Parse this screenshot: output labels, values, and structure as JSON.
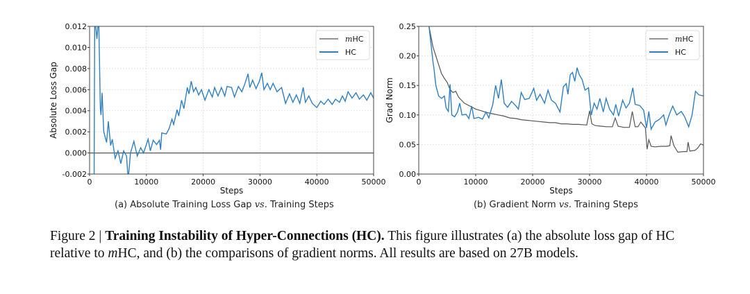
{
  "chart_data": [
    {
      "type": "line",
      "subcaption_prefix": "(a) Absolute Training Loss Gap",
      "subcaption_vs": "vs.",
      "subcaption_suffix": "Training Steps",
      "xlabel": "Steps",
      "ylabel": "Absolute Loss Gap",
      "xlim": [
        0,
        50000
      ],
      "ylim": [
        -0.002,
        0.012
      ],
      "xticks": [
        "0",
        "10000",
        "20000",
        "30000",
        "40000",
        "50000"
      ],
      "yticks": [
        "-0.002",
        "0.000",
        "0.002",
        "0.004",
        "0.006",
        "0.008",
        "0.010",
        "0.012"
      ],
      "grid": true,
      "legend_placement": "top-right",
      "series": [
        {
          "name": "mHC",
          "color": "#555555",
          "points": [
            [
              0,
              0
            ],
            [
              50000,
              0
            ]
          ]
        },
        {
          "name": "HC",
          "color": "#2f7fc1",
          "points": [
            [
              200,
              -0.003
            ],
            [
              800,
              -0.003
            ],
            [
              900,
              0.013
            ],
            [
              1300,
              0.0108
            ],
            [
              1600,
              0.013
            ],
            [
              1900,
              0.0042
            ],
            [
              2000,
              0.0036
            ],
            [
              2200,
              0.0057
            ],
            [
              2500,
              0.002
            ],
            [
              3000,
              0.001
            ],
            [
              3300,
              0.003
            ],
            [
              3700,
              0.0007
            ],
            [
              4000,
              0.0013
            ],
            [
              4500,
              -0.0005
            ],
            [
              5000,
              0.0002
            ],
            [
              5500,
              -0.001
            ],
            [
              6000,
              0.0002
            ],
            [
              6500,
              -0.0003
            ],
            [
              6800,
              -0.0025
            ],
            [
              7200,
              0.0
            ],
            [
              7800,
              0.0011
            ],
            [
              8400,
              -0.0003
            ],
            [
              9000,
              0.0005
            ],
            [
              9500,
              0.0
            ],
            [
              10000,
              0.0008
            ],
            [
              10300,
              0.0013
            ],
            [
              10700,
              0.0002
            ],
            [
              11200,
              0.0012
            ],
            [
              11800,
              0.0008
            ],
            [
              12300,
              0.0012
            ],
            [
              12500,
              0.0003
            ],
            [
              12700,
              0.0019
            ],
            [
              13500,
              0.0018
            ],
            [
              14000,
              0.0023
            ],
            [
              14500,
              0.0032
            ],
            [
              14800,
              0.0027
            ],
            [
              15400,
              0.0041
            ],
            [
              15700,
              0.0035
            ],
            [
              16200,
              0.005
            ],
            [
              16600,
              0.0042
            ],
            [
              17200,
              0.0062
            ],
            [
              17500,
              0.0056
            ],
            [
              17900,
              0.0068
            ],
            [
              18300,
              0.0058
            ],
            [
              18700,
              0.0062
            ],
            [
              19200,
              0.0055
            ],
            [
              19700,
              0.006
            ],
            [
              20300,
              0.005
            ],
            [
              21000,
              0.006
            ],
            [
              21600,
              0.0053
            ],
            [
              22000,
              0.0062
            ],
            [
              22600,
              0.0054
            ],
            [
              23200,
              0.0062
            ],
            [
              23800,
              0.0054
            ],
            [
              24200,
              0.0063
            ],
            [
              25000,
              0.0062
            ],
            [
              25500,
              0.0053
            ],
            [
              26200,
              0.0063
            ],
            [
              26800,
              0.0058
            ],
            [
              27300,
              0.0065
            ],
            [
              27900,
              0.0075
            ],
            [
              28200,
              0.0062
            ],
            [
              28700,
              0.0069
            ],
            [
              29300,
              0.0061
            ],
            [
              29900,
              0.0068
            ],
            [
              30300,
              0.0076
            ],
            [
              30700,
              0.006
            ],
            [
              31300,
              0.0066
            ],
            [
              31800,
              0.006
            ],
            [
              32300,
              0.0066
            ],
            [
              33000,
              0.0058
            ],
            [
              33800,
              0.0062
            ],
            [
              34500,
              0.0047
            ],
            [
              35200,
              0.0056
            ],
            [
              35800,
              0.0048
            ],
            [
              36400,
              0.0055
            ],
            [
              37000,
              0.0047
            ],
            [
              37600,
              0.0062
            ],
            [
              38000,
              0.0048
            ],
            [
              38600,
              0.0054
            ],
            [
              39200,
              0.0047
            ],
            [
              40000,
              0.0043
            ],
            [
              40700,
              0.0049
            ],
            [
              41300,
              0.0046
            ],
            [
              42000,
              0.0051
            ],
            [
              42700,
              0.0046
            ],
            [
              43300,
              0.0051
            ],
            [
              44000,
              0.0048
            ],
            [
              44500,
              0.0054
            ],
            [
              45000,
              0.0049
            ],
            [
              45500,
              0.0058
            ],
            [
              46200,
              0.0052
            ],
            [
              46900,
              0.0057
            ],
            [
              47500,
              0.0051
            ],
            [
              48200,
              0.0055
            ],
            [
              48800,
              0.005
            ],
            [
              49500,
              0.0057
            ],
            [
              50000,
              0.0052
            ]
          ]
        }
      ]
    },
    {
      "type": "line",
      "subcaption_prefix": "(b) Gradient Norm",
      "subcaption_vs": "vs.",
      "subcaption_suffix": "Training Steps",
      "xlabel": "Steps",
      "ylabel": "Grad Norm",
      "xlim": [
        0,
        50000
      ],
      "ylim": [
        0,
        0.25
      ],
      "xticks": [
        "0",
        "10000",
        "20000",
        "30000",
        "40000",
        "50000"
      ],
      "yticks": [
        "0.00",
        "0.05",
        "0.10",
        "0.15",
        "0.20",
        "0.25"
      ],
      "grid": true,
      "legend_placement": "top-right",
      "series": [
        {
          "name": "mHC",
          "color": "#555555",
          "points": [
            [
              1800,
              0.25
            ],
            [
              2500,
              0.215
            ],
            [
              3000,
              0.2
            ],
            [
              3500,
              0.185
            ],
            [
              4000,
              0.17
            ],
            [
              4500,
              0.162
            ],
            [
              5000,
              0.155
            ],
            [
              5500,
              0.143
            ],
            [
              6000,
              0.138
            ],
            [
              6500,
              0.14
            ],
            [
              7000,
              0.13
            ],
            [
              7500,
              0.125
            ],
            [
              8000,
              0.12
            ],
            [
              9000,
              0.115
            ],
            [
              10000,
              0.11
            ],
            [
              11000,
              0.107
            ],
            [
              12000,
              0.104
            ],
            [
              13000,
              0.102
            ],
            [
              14000,
              0.1
            ],
            [
              15000,
              0.098
            ],
            [
              16000,
              0.095
            ],
            [
              17000,
              0.094
            ],
            [
              18000,
              0.092
            ],
            [
              19000,
              0.091
            ],
            [
              20000,
              0.09
            ],
            [
              21000,
              0.089
            ],
            [
              22000,
              0.088
            ],
            [
              23000,
              0.087
            ],
            [
              24000,
              0.087
            ],
            [
              25000,
              0.085
            ],
            [
              26000,
              0.085
            ],
            [
              27000,
              0.084
            ],
            [
              28000,
              0.084
            ],
            [
              29500,
              0.083
            ],
            [
              30000,
              0.107
            ],
            [
              30400,
              0.085
            ],
            [
              31000,
              0.082
            ],
            [
              32000,
              0.081
            ],
            [
              33000,
              0.08
            ],
            [
              34000,
              0.08
            ],
            [
              34500,
              0.095
            ],
            [
              35000,
              0.081
            ],
            [
              36000,
              0.079
            ],
            [
              37000,
              0.079
            ],
            [
              37500,
              0.106
            ],
            [
              38000,
              0.08
            ],
            [
              38500,
              0.08
            ],
            [
              39000,
              0.088
            ],
            [
              39800,
              0.078
            ],
            [
              40100,
              0.042
            ],
            [
              40400,
              0.058
            ],
            [
              40800,
              0.047
            ],
            [
              41500,
              0.046
            ],
            [
              42500,
              0.047
            ],
            [
              43500,
              0.047
            ],
            [
              44100,
              0.048
            ],
            [
              44300,
              0.065
            ],
            [
              44800,
              0.048
            ],
            [
              45500,
              0.037
            ],
            [
              46500,
              0.038
            ],
            [
              47100,
              0.038
            ],
            [
              47300,
              0.054
            ],
            [
              47600,
              0.039
            ],
            [
              48500,
              0.04
            ],
            [
              49000,
              0.044
            ],
            [
              49500,
              0.051
            ],
            [
              50000,
              0.049
            ]
          ]
        },
        {
          "name": "HC",
          "color": "#2f7fc1",
          "points": [
            [
              1800,
              0.25
            ],
            [
              2500,
              0.19
            ],
            [
              2700,
              0.177
            ],
            [
              3000,
              0.15
            ],
            [
              3500,
              0.132
            ],
            [
              4000,
              0.128
            ],
            [
              4500,
              0.132
            ],
            [
              4800,
              0.112
            ],
            [
              5200,
              0.106
            ],
            [
              5500,
              0.152
            ],
            [
              5800,
              0.1
            ],
            [
              6300,
              0.097
            ],
            [
              6800,
              0.105
            ],
            [
              7200,
              0.12
            ],
            [
              7600,
              0.1
            ],
            [
              8300,
              0.101
            ],
            [
              8800,
              0.094
            ],
            [
              9300,
              0.115
            ],
            [
              9700,
              0.094
            ],
            [
              10500,
              0.096
            ],
            [
              11200,
              0.093
            ],
            [
              11800,
              0.105
            ],
            [
              12300,
              0.095
            ],
            [
              13000,
              0.118
            ],
            [
              13500,
              0.15
            ],
            [
              14000,
              0.128
            ],
            [
              14500,
              0.16
            ],
            [
              15000,
              0.12
            ],
            [
              15600,
              0.113
            ],
            [
              16300,
              0.123
            ],
            [
              17000,
              0.116
            ],
            [
              17500,
              0.11
            ],
            [
              18000,
              0.138
            ],
            [
              18600,
              0.126
            ],
            [
              19400,
              0.128
            ],
            [
              20200,
              0.145
            ],
            [
              20700,
              0.125
            ],
            [
              21300,
              0.135
            ],
            [
              22100,
              0.12
            ],
            [
              22700,
              0.142
            ],
            [
              23300,
              0.125
            ],
            [
              24000,
              0.12
            ],
            [
              24800,
              0.105
            ],
            [
              25400,
              0.148
            ],
            [
              25900,
              0.153
            ],
            [
              26200,
              0.135
            ],
            [
              26600,
              0.168
            ],
            [
              27000,
              0.172
            ],
            [
              27400,
              0.157
            ],
            [
              27800,
              0.18
            ],
            [
              28200,
              0.168
            ],
            [
              28700,
              0.16
            ],
            [
              29200,
              0.142
            ],
            [
              29800,
              0.146
            ],
            [
              30300,
              0.1
            ],
            [
              30800,
              0.12
            ],
            [
              31300,
              0.11
            ],
            [
              31800,
              0.128
            ],
            [
              32400,
              0.105
            ],
            [
              32900,
              0.128
            ],
            [
              33500,
              0.11
            ],
            [
              34200,
              0.1
            ],
            [
              34600,
              0.118
            ],
            [
              35100,
              0.098
            ],
            [
              35800,
              0.125
            ],
            [
              36400,
              0.112
            ],
            [
              37000,
              0.12
            ],
            [
              37600,
              0.146
            ],
            [
              38000,
              0.118
            ],
            [
              38800,
              0.116
            ],
            [
              39500,
              0.108
            ],
            [
              40000,
              0.078
            ],
            [
              40400,
              0.106
            ],
            [
              40800,
              0.076
            ],
            [
              41500,
              0.088
            ],
            [
              42300,
              0.093
            ],
            [
              43000,
              0.1
            ],
            [
              43400,
              0.083
            ],
            [
              44000,
              0.101
            ],
            [
              44600,
              0.115
            ],
            [
              45300,
              0.1
            ],
            [
              46100,
              0.106
            ],
            [
              46700,
              0.097
            ],
            [
              47400,
              0.08
            ],
            [
              48000,
              0.1
            ],
            [
              48600,
              0.14
            ],
            [
              49200,
              0.134
            ],
            [
              50000,
              0.132
            ]
          ]
        }
      ]
    }
  ],
  "caption": {
    "figure_label": "Figure 2 |",
    "title": "Training Instability of Hyper-Connections (HC).",
    "text_1": " This figure illustrates (a) the absolute loss gap of HC relative to ",
    "m_italic": "m",
    "text_2": "HC, and (b) the comparisons of gradient norms. All results are based on 27B models."
  }
}
